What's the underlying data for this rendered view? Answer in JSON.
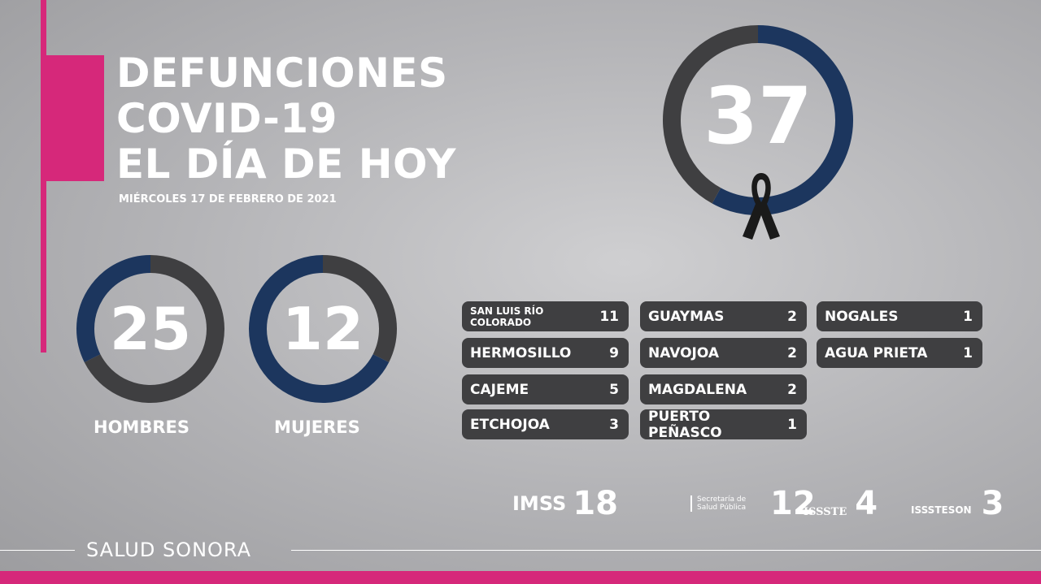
{
  "title": [
    "DEFUNCIONES",
    "COVID-19",
    "EL DÍA DE HOY"
  ],
  "date": "MIÉRCOLES 17 DE FEBRERO DE 2021",
  "total": {
    "value": "37",
    "icon": "mourning-ribbon-icon"
  },
  "hombres": {
    "value": "25",
    "label": "HOMBRES"
  },
  "mujeres": {
    "value": "12",
    "label": "MUJERES"
  },
  "colors": {
    "pink": "#d6287a",
    "navy": "#1c365e",
    "dark": "#3f3f41"
  },
  "municipios": [
    {
      "name": "SAN LUIS RÍO COLORADO",
      "value": "11"
    },
    {
      "name": "HERMOSILLO",
      "value": "9"
    },
    {
      "name": "CAJEME",
      "value": "5"
    },
    {
      "name": "ETCHOJOA",
      "value": "3"
    },
    {
      "name": "GUAYMAS",
      "value": "2"
    },
    {
      "name": "NAVOJOA",
      "value": "2"
    },
    {
      "name": "MAGDALENA",
      "value": "2"
    },
    {
      "name": "PUERTO PEÑASCO",
      "value": "1"
    },
    {
      "name": "NOGALES",
      "value": "1"
    },
    {
      "name": "AGUA PRIETA",
      "value": "1"
    }
  ],
  "instituciones": [
    {
      "name": "IMSS",
      "value": "18"
    },
    {
      "name": "Secretaría de Salud Pública",
      "value": "12"
    },
    {
      "name": "ISSSTE",
      "value": "4"
    },
    {
      "name": "ISSSTESON",
      "value": "3"
    }
  ],
  "footer": "SALUD SONORA"
}
